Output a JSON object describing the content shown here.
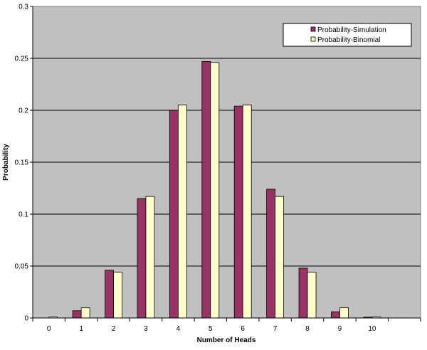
{
  "chart_data": {
    "type": "bar",
    "xlabel": "Number of Heads",
    "ylabel": "Probability",
    "categories": [
      "0",
      "1",
      "2",
      "3",
      "4",
      "5",
      "6",
      "7",
      "8",
      "9",
      "10",
      ""
    ],
    "ylim": [
      0,
      0.3
    ],
    "yticks": [
      "0",
      "0.05",
      "0.1",
      "0.15",
      "0.2",
      "0.25",
      "0.3"
    ],
    "grid": true,
    "legend_position": "top-right",
    "series": [
      {
        "name": "Probability-Simulation",
        "color": "#993366",
        "values": [
          0,
          0.007,
          0.046,
          0.115,
          0.2,
          0.247,
          0.204,
          0.124,
          0.048,
          0.006,
          0.0008,
          0
        ]
      },
      {
        "name": "Probability-Binomial",
        "color": "#FFFFCC",
        "values": [
          0.001,
          0.0098,
          0.044,
          0.117,
          0.205,
          0.246,
          0.205,
          0.117,
          0.044,
          0.0098,
          0.001,
          0
        ]
      }
    ],
    "plot_background": "#C0C0C0"
  }
}
